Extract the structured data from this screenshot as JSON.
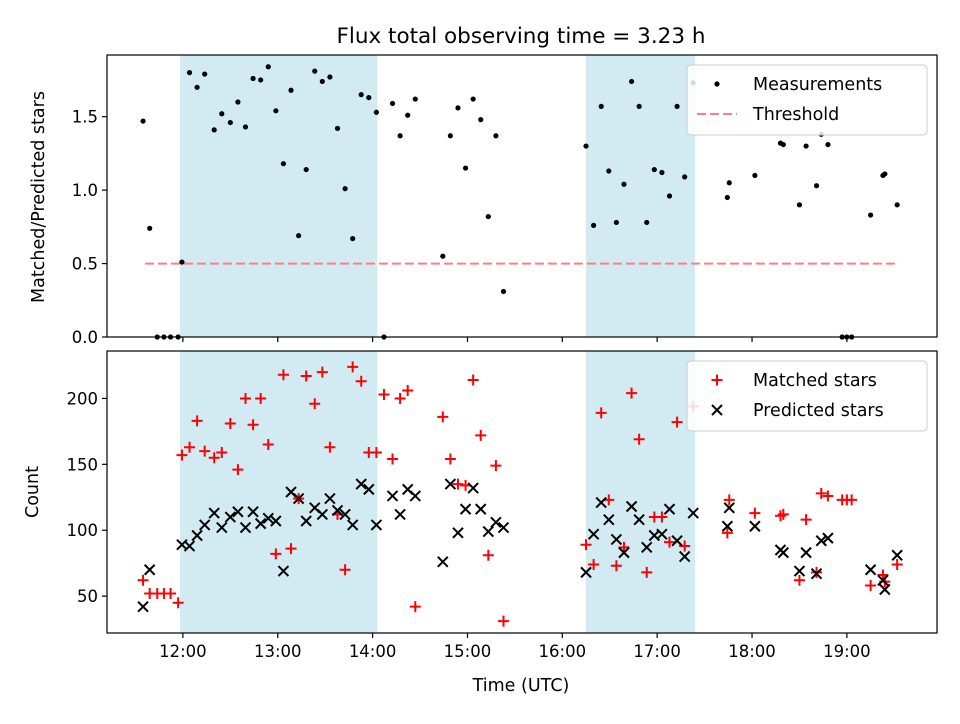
{
  "title": "Flux total observing time = 3.23 h",
  "colors": {
    "shade": "#add8e6",
    "measurement": "#000000",
    "threshold": "#ff7f7f",
    "matched": "#ff0000",
    "predicted": "#000000"
  },
  "chart_data": [
    {
      "type": "scatter",
      "panel": "top",
      "title": "Flux total observing time = 3.23 h",
      "ylabel": "Matched/Predicted stars",
      "xlabel": "",
      "xlim": [
        11.2,
        19.95
      ],
      "ylim": [
        0,
        1.92
      ],
      "yticks": [
        0.0,
        0.5,
        1.0,
        1.5
      ],
      "ytick_labels": [
        "0.0",
        "0.5",
        "1.0",
        "1.5"
      ],
      "xticks": [
        12,
        13,
        14,
        15,
        16,
        17,
        18,
        19
      ],
      "shaded_intervals": [
        [
          11.97,
          14.05
        ],
        [
          16.25,
          17.4
        ]
      ],
      "legend": {
        "placement": "top-right",
        "entries": [
          "Measurements",
          "Threshold"
        ]
      },
      "threshold": {
        "name": "Threshold",
        "y": 0.5,
        "x": [
          11.6,
          19.55
        ]
      },
      "series": [
        {
          "name": "Measurements",
          "x": [
            11.58,
            11.65,
            11.73,
            11.8,
            11.87,
            11.95,
            11.99,
            12.07,
            12.15,
            12.23,
            12.33,
            12.41,
            12.5,
            12.58,
            12.66,
            12.74,
            12.82,
            12.9,
            12.98,
            13.06,
            13.14,
            13.22,
            13.3,
            13.39,
            13.47,
            13.55,
            13.63,
            13.71,
            13.79,
            13.88,
            13.96,
            14.04,
            14.12,
            14.21,
            14.29,
            14.37,
            14.45,
            14.74,
            14.82,
            14.9,
            14.98,
            15.06,
            15.14,
            15.22,
            15.3,
            15.38,
            16.25,
            16.33,
            16.41,
            16.49,
            16.57,
            16.65,
            16.73,
            16.81,
            16.89,
            16.97,
            17.05,
            17.13,
            17.21,
            17.29,
            17.38,
            17.74,
            17.76,
            18.03,
            18.3,
            18.33,
            18.5,
            18.57,
            18.68,
            18.73,
            18.8,
            18.95,
            19.0,
            19.05,
            19.25,
            19.38,
            19.4,
            19.53
          ],
          "y": [
            1.47,
            0.74,
            0.0,
            0.0,
            0.0,
            0.0,
            0.51,
            1.8,
            1.7,
            1.79,
            1.41,
            1.52,
            1.46,
            1.6,
            1.43,
            1.76,
            1.75,
            1.84,
            1.54,
            1.18,
            1.68,
            0.69,
            1.14,
            1.81,
            1.74,
            1.77,
            1.42,
            1.01,
            0.67,
            1.65,
            1.63,
            1.53,
            0.0,
            1.59,
            1.37,
            1.51,
            1.62,
            0.55,
            1.37,
            1.56,
            1.15,
            1.62,
            1.48,
            0.82,
            1.37,
            0.31,
            1.3,
            0.76,
            1.57,
            1.13,
            0.78,
            1.04,
            1.74,
            1.57,
            0.78,
            1.14,
            1.12,
            0.96,
            1.57,
            1.09,
            1.73,
            0.95,
            1.05,
            1.1,
            1.32,
            1.31,
            0.9,
            1.3,
            1.03,
            1.38,
            1.31,
            0.0,
            0.0,
            0.0,
            0.83,
            1.1,
            1.11,
            0.9
          ]
        }
      ]
    },
    {
      "type": "scatter",
      "panel": "bottom",
      "ylabel": "Count",
      "xlabel": "Time (UTC)",
      "xlim": [
        11.2,
        19.95
      ],
      "ylim": [
        22,
        236
      ],
      "yticks": [
        50,
        100,
        150,
        200
      ],
      "ytick_labels": [
        "50",
        "100",
        "150",
        "200"
      ],
      "xticks": [
        12,
        13,
        14,
        15,
        16,
        17,
        18,
        19
      ],
      "xtick_labels": [
        "12:00",
        "13:00",
        "14:00",
        "15:00",
        "16:00",
        "17:00",
        "18:00",
        "19:00"
      ],
      "shaded_intervals": [
        [
          11.97,
          14.05
        ],
        [
          16.25,
          17.4
        ]
      ],
      "legend": {
        "placement": "top-right",
        "entries": [
          "Matched stars",
          "Predicted stars"
        ]
      },
      "series": [
        {
          "name": "Matched stars",
          "marker": "plus",
          "x": [
            11.58,
            11.65,
            11.73,
            11.8,
            11.87,
            11.95,
            11.99,
            12.07,
            12.15,
            12.23,
            12.33,
            12.41,
            12.5,
            12.58,
            12.66,
            12.74,
            12.82,
            12.9,
            12.98,
            13.06,
            13.14,
            13.22,
            13.3,
            13.39,
            13.47,
            13.55,
            13.63,
            13.71,
            13.79,
            13.88,
            13.96,
            14.04,
            14.12,
            14.21,
            14.29,
            14.37,
            14.45,
            14.74,
            14.82,
            14.9,
            14.98,
            15.06,
            15.14,
            15.22,
            15.3,
            15.38,
            16.25,
            16.33,
            16.41,
            16.49,
            16.57,
            16.65,
            16.73,
            16.81,
            16.89,
            16.97,
            17.05,
            17.13,
            17.21,
            17.29,
            17.38,
            17.74,
            17.76,
            18.03,
            18.3,
            18.33,
            18.5,
            18.57,
            18.68,
            18.73,
            18.8,
            18.95,
            19.0,
            19.05,
            19.25,
            19.38,
            19.4,
            19.53
          ],
          "y": [
            62,
            52,
            52,
            52,
            52,
            45,
            157,
            163,
            183,
            160,
            155,
            159,
            181,
            146,
            200,
            180,
            200,
            165,
            82,
            218,
            86,
            124,
            217,
            196,
            220,
            163,
            112,
            70,
            224,
            213,
            159,
            159,
            203,
            154,
            200,
            206,
            42,
            186,
            154,
            135,
            134,
            214,
            172,
            81,
            149,
            31,
            89,
            74,
            189,
            123,
            73,
            87,
            204,
            169,
            68,
            110,
            110,
            91,
            182,
            88,
            194,
            98,
            123,
            113,
            111,
            112,
            62,
            108,
            68,
            128,
            126,
            123,
            123,
            123,
            58,
            66,
            61,
            74
          ]
        },
        {
          "name": "Predicted stars",
          "marker": "x",
          "x": [
            11.58,
            11.65,
            11.99,
            12.07,
            12.15,
            12.23,
            12.33,
            12.41,
            12.5,
            12.58,
            12.66,
            12.74,
            12.82,
            12.9,
            12.98,
            13.06,
            13.14,
            13.22,
            13.3,
            13.39,
            13.47,
            13.55,
            13.63,
            13.71,
            13.79,
            13.88,
            13.96,
            14.04,
            14.21,
            14.29,
            14.37,
            14.45,
            14.74,
            14.82,
            14.9,
            14.98,
            15.06,
            15.14,
            15.22,
            15.3,
            15.38,
            16.25,
            16.33,
            16.41,
            16.49,
            16.57,
            16.65,
            16.73,
            16.81,
            16.89,
            16.97,
            17.05,
            17.13,
            17.21,
            17.29,
            17.38,
            17.74,
            17.76,
            18.03,
            18.3,
            18.33,
            18.5,
            18.57,
            18.68,
            18.73,
            18.8,
            19.25,
            19.38,
            19.4,
            19.53
          ],
          "y": [
            42,
            70,
            89,
            88,
            96,
            104,
            113,
            102,
            110,
            114,
            102,
            114,
            105,
            109,
            107,
            69,
            129,
            124,
            107,
            117,
            112,
            124,
            115,
            112,
            104,
            135,
            131,
            104,
            126,
            112,
            131,
            126,
            76,
            135,
            98,
            116,
            132,
            116,
            99,
            106,
            102,
            68,
            97,
            121,
            108,
            93,
            83,
            118,
            108,
            87,
            96,
            97,
            116,
            92,
            80,
            113,
            103,
            117,
            103,
            85,
            83,
            69,
            83,
            67,
            92,
            94,
            70,
            62,
            55,
            81
          ]
        }
      ]
    }
  ]
}
